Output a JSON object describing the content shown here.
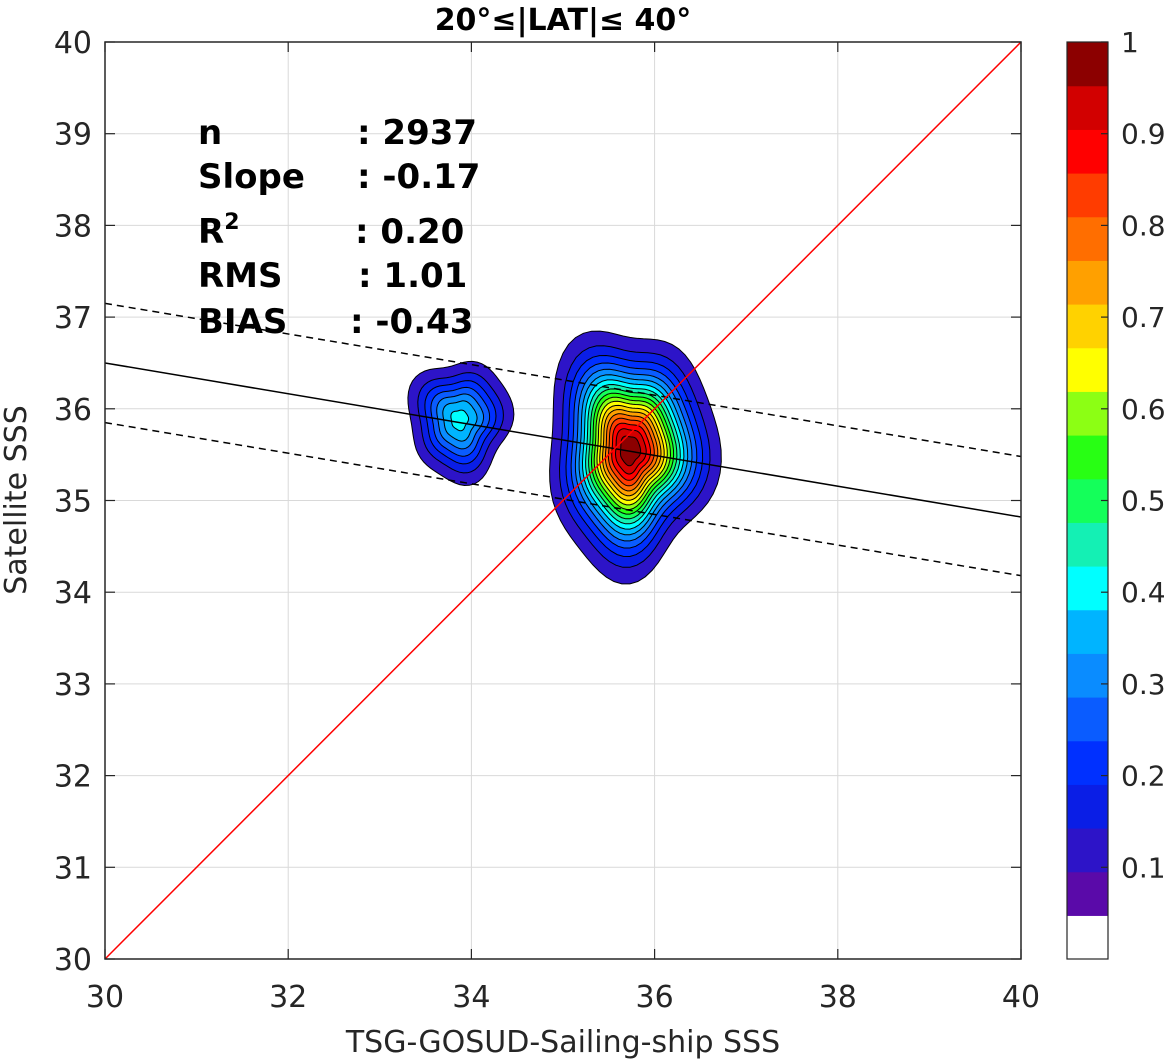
{
  "chart_data": {
    "type": "contour",
    "title": "20°≤|LAT|≤ 40°",
    "xlabel": "TSG-GOSUD-Sailing-ship SSS",
    "ylabel": "Satellite SSS",
    "xlim": [
      30,
      40
    ],
    "ylim": [
      30,
      40
    ],
    "xticks": [
      "30",
      "32",
      "34",
      "36",
      "38",
      "40"
    ],
    "yticks": [
      "30",
      "31",
      "32",
      "33",
      "34",
      "35",
      "36",
      "37",
      "38",
      "39",
      "40"
    ],
    "grid": true,
    "stats": {
      "n_label": "n",
      "n_value": ": 2937",
      "slope_label": "Slope",
      "slope_value": ": -0.17",
      "r2_label": "R",
      "r2_sup": "2",
      "r2_value": ": 0.20",
      "rms_label": "RMS",
      "rms_value": ": 1.01",
      "bias_label": "BIAS",
      "bias_value": ": -0.43"
    },
    "lines": {
      "identity": {
        "color": "#ff0000",
        "points": [
          [
            30,
            30
          ],
          [
            40,
            40
          ]
        ]
      },
      "fit": {
        "color": "#000000",
        "style": "solid",
        "points": [
          [
            30,
            36.5
          ],
          [
            40,
            34.82
          ]
        ]
      },
      "fit_upper": {
        "color": "#000000",
        "style": "dashed",
        "points": [
          [
            30,
            37.15
          ],
          [
            40,
            35.48
          ]
        ]
      },
      "fit_lower": {
        "color": "#000000",
        "style": "dashed",
        "points": [
          [
            30,
            35.85
          ],
          [
            40,
            34.18
          ]
        ]
      }
    },
    "clusters": [
      {
        "name": "",
        "center": [
          33.87,
          35.88
        ],
        "sx": 0.28,
        "sy": 0.33,
        "peak": 0.37
      },
      {
        "name": "",
        "center": [
          35.73,
          35.55
        ],
        "sx": 0.38,
        "sy": 0.55,
        "peak": 0.99
      }
    ],
    "colorbar": {
      "ticks": [
        "0.1",
        "0.2",
        "0.3",
        "0.4",
        "0.5",
        "0.6",
        "0.7",
        "0.8",
        "0.9",
        "1"
      ],
      "levels": [
        0,
        0.05,
        0.1,
        0.15,
        0.2,
        0.25,
        0.3,
        0.35,
        0.4,
        0.45,
        0.5,
        0.55,
        0.6,
        0.65,
        0.7,
        0.75,
        0.8,
        0.85,
        0.9,
        0.95,
        1.0
      ],
      "colors": [
        "#ffffff",
        "#5a0aa9",
        "#2d14c8",
        "#0a1ee6",
        "#0030ff",
        "#0a5cff",
        "#0a8cff",
        "#00b4ff",
        "#00ffff",
        "#14f0b4",
        "#14ff5a",
        "#28ff14",
        "#8cff14",
        "#ffff00",
        "#ffd200",
        "#ffa000",
        "#ff6e00",
        "#ff3c00",
        "#ff0000",
        "#d20000",
        "#8c0000"
      ]
    }
  }
}
